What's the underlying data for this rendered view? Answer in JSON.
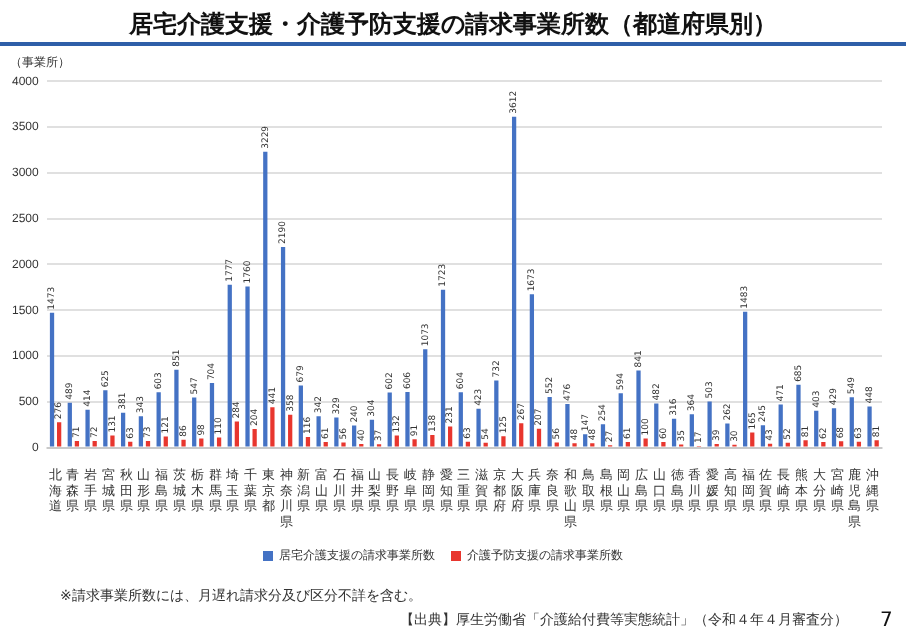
{
  "chart_data": {
    "type": "bar",
    "title": "居宅介護支援・介護予防支援の請求事業所数（都道府県別）",
    "ylabel": "（事業所）",
    "categories": [
      "北海道",
      "青森県",
      "岩手県",
      "宮城県",
      "秋田県",
      "山形県",
      "福島県",
      "茨城県",
      "栃木県",
      "群馬県",
      "埼玉県",
      "千葉県",
      "東京都",
      "神奈川県",
      "新潟県",
      "富山県",
      "石川県",
      "福井県",
      "山梨県",
      "長野県",
      "岐阜県",
      "静岡県",
      "愛知県",
      "三重県",
      "滋賀県",
      "京都府",
      "大阪府",
      "兵庫県",
      "奈良県",
      "和歌山県",
      "鳥取県",
      "島根県",
      "岡山県",
      "広島県",
      "山口県",
      "徳島県",
      "香川県",
      "愛媛県",
      "高知県",
      "福岡県",
      "佐賀県",
      "長崎県",
      "熊本県",
      "大分県",
      "宮崎県",
      "鹿児島県",
      "沖縄県"
    ],
    "series": [
      {
        "name": "居宅介護支援の請求事業所数",
        "color": "#4472c4",
        "values": [
          1473,
          489,
          414,
          625,
          381,
          343,
          603,
          851,
          547,
          704,
          1777,
          1760,
          3229,
          2190,
          679,
          342,
          329,
          240,
          304,
          602,
          606,
          1073,
          1723,
          604,
          423,
          732,
          3612,
          1673,
          552,
          476,
          147,
          254,
          594,
          841,
          482,
          316,
          364,
          503,
          262,
          1483,
          245,
          471,
          685,
          403,
          429,
          549,
          448
        ]
      },
      {
        "name": "介護予防支援の請求事業所数",
        "color": "#e8362e",
        "values": [
          276,
          71,
          72,
          131,
          63,
          73,
          121,
          86,
          98,
          110,
          284,
          204,
          441,
          358,
          116,
          61,
          56,
          40,
          37,
          132,
          91,
          138,
          231,
          63,
          54,
          125,
          267,
          207,
          56,
          48,
          48,
          27,
          61,
          100,
          60,
          35,
          17,
          39,
          30,
          165,
          43,
          52,
          81,
          62,
          68,
          63,
          81
        ]
      }
    ],
    "ylim": [
      0,
      4000
    ],
    "yticks": [
      0,
      500,
      1000,
      1500,
      2000,
      2500,
      3000,
      3500,
      4000
    ],
    "grid": "y",
    "legend": "bottom",
    "data_labels": true,
    "annotations": [
      "※請求事業所数には、月遅れ請求分及び区分不詳を含む。",
      "【出典】厚生労働省「介護給付費等実態統計」（令和４年４月審査分）",
      "7"
    ]
  }
}
